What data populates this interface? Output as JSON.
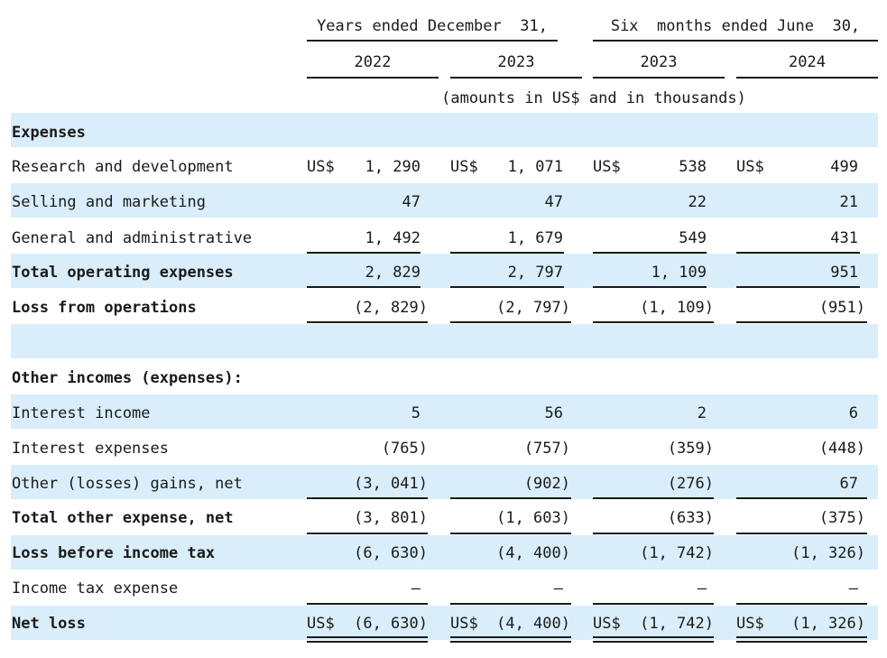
{
  "header": {
    "group_years": "Years ended December  31,",
    "group_six": "Six  months ended June  30,",
    "columns": [
      "2022",
      "2023",
      "2023",
      "2024"
    ],
    "units_note": "(amounts in US$ and in thousands)"
  },
  "rows": {
    "expenses": {
      "label": "Expenses"
    },
    "rnd": {
      "label": "Research and development",
      "currency": "US$",
      "values": [
        "1, 290",
        "1, 071",
        "538",
        "499"
      ]
    },
    "selling": {
      "label": "Selling and marketing",
      "values": [
        "47",
        "47",
        "22",
        "21"
      ]
    },
    "general": {
      "label": "General and administrative",
      "values": [
        "1, 492",
        "1, 679",
        "549",
        "431"
      ]
    },
    "total_opex": {
      "label": "Total operating expenses",
      "values": [
        "2, 829",
        "2, 797",
        "1, 109",
        "951"
      ]
    },
    "loss_ops": {
      "label": "Loss from operations",
      "values": [
        "(2, 829)",
        "(2, 797)",
        "(1, 109)",
        "(951)"
      ]
    },
    "other_header": {
      "label": "Other incomes (expenses):"
    },
    "interest_income": {
      "label": "Interest income",
      "values": [
        "5",
        "56",
        "2",
        "6"
      ]
    },
    "interest_exp": {
      "label": "Interest expenses",
      "values": [
        "(765)",
        "(757)",
        "(359)",
        "(448)"
      ]
    },
    "other_gains": {
      "label": "Other (losses) gains, net",
      "values": [
        "(3, 041)",
        "(902)",
        "(276)",
        "67"
      ]
    },
    "total_other": {
      "label": "Total other expense, net",
      "values": [
        "(3, 801)",
        "(1, 603)",
        "(633)",
        "(375)"
      ]
    },
    "loss_before": {
      "label": "Loss before income tax",
      "values": [
        "(6, 630)",
        "(4, 400)",
        "(1, 742)",
        "(1, 326)"
      ]
    },
    "tax": {
      "label": "Income tax expense",
      "values": [
        "—",
        "—",
        "—",
        "—"
      ]
    },
    "net_loss": {
      "label": "Net loss",
      "currency": "US$",
      "values": [
        "(6, 630)",
        "(4, 400)",
        "(1, 742)",
        "(1, 326)"
      ]
    }
  }
}
